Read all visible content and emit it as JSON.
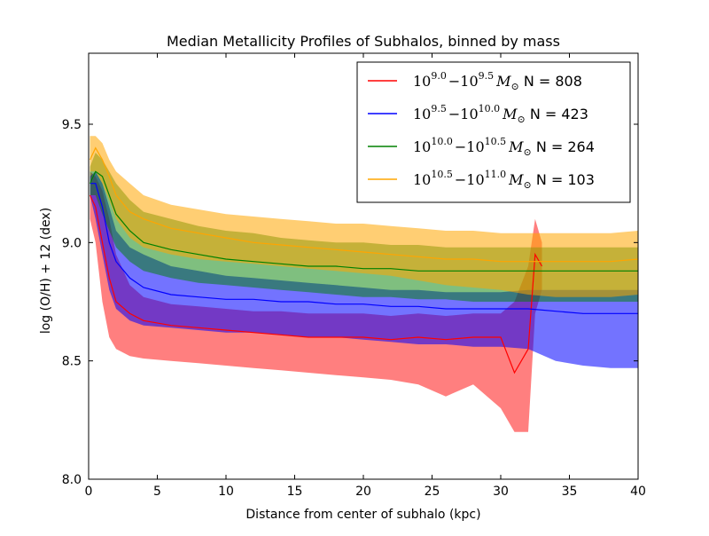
{
  "chart_data": {
    "type": "line",
    "title": "Median Metallicity Profiles of Subhalos, binned by mass",
    "xlabel": "Distance from center of subhalo (kpc)",
    "ylabel": "log (O/H) + 12 (dex)",
    "xlim": [
      0,
      40
    ],
    "ylim": [
      8.0,
      9.8
    ],
    "xticks": [
      0,
      5,
      10,
      15,
      20,
      25,
      30,
      35,
      40
    ],
    "yticks": [
      8.0,
      8.5,
      9.0,
      9.5
    ],
    "xtick_labels": [
      "0",
      "5",
      "10",
      "15",
      "20",
      "25",
      "30",
      "35",
      "40"
    ],
    "ytick_labels": [
      "8.0",
      "8.5",
      "9.0",
      "9.5"
    ],
    "grid": false,
    "legend_position": "top-right",
    "series": [
      {
        "legend": {
          "b1": "10",
          "e1": "9.0",
          "b2": "10",
          "e2": "9.5",
          "n": "N = 808"
        },
        "color": "#ff0000",
        "band_opacity": 0.5,
        "median": [
          [
            0.1,
            9.2
          ],
          [
            0.5,
            9.15
          ],
          [
            1,
            9.0
          ],
          [
            1.5,
            8.85
          ],
          [
            2,
            8.75
          ],
          [
            3,
            8.7
          ],
          [
            4,
            8.67
          ],
          [
            6,
            8.65
          ],
          [
            8,
            8.64
          ],
          [
            10,
            8.63
          ],
          [
            12,
            8.62
          ],
          [
            14,
            8.61
          ],
          [
            16,
            8.6
          ],
          [
            18,
            8.6
          ],
          [
            20,
            8.6
          ],
          [
            22,
            8.59
          ],
          [
            24,
            8.6
          ],
          [
            26,
            8.59
          ],
          [
            28,
            8.6
          ],
          [
            30,
            8.6
          ],
          [
            31,
            8.45
          ],
          [
            32,
            8.55
          ],
          [
            32.5,
            8.95
          ],
          [
            33,
            8.9
          ]
        ],
        "upper": [
          [
            0.1,
            9.3
          ],
          [
            0.5,
            9.28
          ],
          [
            1,
            9.22
          ],
          [
            1.5,
            9.1
          ],
          [
            2,
            8.95
          ],
          [
            3,
            8.82
          ],
          [
            4,
            8.77
          ],
          [
            6,
            8.74
          ],
          [
            8,
            8.73
          ],
          [
            10,
            8.72
          ],
          [
            12,
            8.71
          ],
          [
            14,
            8.71
          ],
          [
            16,
            8.7
          ],
          [
            18,
            8.7
          ],
          [
            20,
            8.7
          ],
          [
            22,
            8.69
          ],
          [
            24,
            8.7
          ],
          [
            26,
            8.69
          ],
          [
            28,
            8.7
          ],
          [
            30,
            8.7
          ],
          [
            31,
            8.75
          ],
          [
            32,
            8.9
          ],
          [
            32.5,
            9.1
          ],
          [
            33,
            9.0
          ]
        ],
        "lower": [
          [
            0.1,
            9.1
          ],
          [
            0.5,
            9.0
          ],
          [
            1,
            8.75
          ],
          [
            1.5,
            8.6
          ],
          [
            2,
            8.55
          ],
          [
            3,
            8.52
          ],
          [
            4,
            8.51
          ],
          [
            6,
            8.5
          ],
          [
            8,
            8.49
          ],
          [
            10,
            8.48
          ],
          [
            12,
            8.47
          ],
          [
            14,
            8.46
          ],
          [
            16,
            8.45
          ],
          [
            18,
            8.44
          ],
          [
            20,
            8.43
          ],
          [
            22,
            8.42
          ],
          [
            24,
            8.4
          ],
          [
            26,
            8.35
          ],
          [
            28,
            8.4
          ],
          [
            30,
            8.3
          ],
          [
            31,
            8.2
          ],
          [
            32,
            8.2
          ],
          [
            32.5,
            8.7
          ],
          [
            33,
            8.8
          ]
        ]
      },
      {
        "legend": {
          "b1": "10",
          "e1": "9.5",
          "b2": "10",
          "e2": "10.0",
          "n": "N = 423"
        },
        "color": "#0000ff",
        "band_opacity": 0.55,
        "median": [
          [
            0.1,
            9.25
          ],
          [
            0.5,
            9.25
          ],
          [
            1,
            9.15
          ],
          [
            1.5,
            9.0
          ],
          [
            2,
            8.92
          ],
          [
            3,
            8.85
          ],
          [
            4,
            8.81
          ],
          [
            6,
            8.78
          ],
          [
            8,
            8.77
          ],
          [
            10,
            8.76
          ],
          [
            12,
            8.76
          ],
          [
            14,
            8.75
          ],
          [
            16,
            8.75
          ],
          [
            18,
            8.74
          ],
          [
            20,
            8.74
          ],
          [
            22,
            8.73
          ],
          [
            24,
            8.73
          ],
          [
            26,
            8.72
          ],
          [
            28,
            8.72
          ],
          [
            30,
            8.72
          ],
          [
            32,
            8.72
          ],
          [
            34,
            8.71
          ],
          [
            36,
            8.7
          ],
          [
            38,
            8.7
          ],
          [
            40,
            8.7
          ]
        ],
        "upper": [
          [
            0.1,
            9.28
          ],
          [
            0.5,
            9.3
          ],
          [
            1,
            9.25
          ],
          [
            1.5,
            9.15
          ],
          [
            2,
            9.05
          ],
          [
            3,
            8.98
          ],
          [
            4,
            8.95
          ],
          [
            6,
            8.9
          ],
          [
            8,
            8.88
          ],
          [
            10,
            8.86
          ],
          [
            12,
            8.85
          ],
          [
            14,
            8.84
          ],
          [
            16,
            8.83
          ],
          [
            18,
            8.82
          ],
          [
            20,
            8.81
          ],
          [
            22,
            8.8
          ],
          [
            24,
            8.8
          ],
          [
            26,
            8.79
          ],
          [
            28,
            8.79
          ],
          [
            30,
            8.79
          ],
          [
            32,
            8.8
          ],
          [
            34,
            8.8
          ],
          [
            36,
            8.8
          ],
          [
            38,
            8.8
          ],
          [
            40,
            8.8
          ]
        ],
        "lower": [
          [
            0.1,
            9.2
          ],
          [
            0.5,
            9.1
          ],
          [
            1,
            8.95
          ],
          [
            1.5,
            8.8
          ],
          [
            2,
            8.72
          ],
          [
            3,
            8.67
          ],
          [
            4,
            8.65
          ],
          [
            6,
            8.64
          ],
          [
            8,
            8.63
          ],
          [
            10,
            8.62
          ],
          [
            12,
            8.62
          ],
          [
            14,
            8.61
          ],
          [
            16,
            8.6
          ],
          [
            18,
            8.6
          ],
          [
            20,
            8.59
          ],
          [
            22,
            8.58
          ],
          [
            24,
            8.57
          ],
          [
            26,
            8.57
          ],
          [
            28,
            8.56
          ],
          [
            30,
            8.56
          ],
          [
            32,
            8.55
          ],
          [
            34,
            8.5
          ],
          [
            36,
            8.48
          ],
          [
            38,
            8.47
          ],
          [
            40,
            8.47
          ]
        ]
      },
      {
        "legend": {
          "b1": "10",
          "e1": "10.0",
          "b2": "10",
          "e2": "10.5",
          "n": "N = 264"
        },
        "color": "#008000",
        "band_opacity": 0.5,
        "median": [
          [
            0.1,
            9.25
          ],
          [
            0.5,
            9.3
          ],
          [
            1,
            9.28
          ],
          [
            1.5,
            9.2
          ],
          [
            2,
            9.12
          ],
          [
            3,
            9.05
          ],
          [
            4,
            9.0
          ],
          [
            6,
            8.97
          ],
          [
            8,
            8.95
          ],
          [
            10,
            8.93
          ],
          [
            12,
            8.92
          ],
          [
            14,
            8.91
          ],
          [
            16,
            8.9
          ],
          [
            18,
            8.9
          ],
          [
            20,
            8.89
          ],
          [
            22,
            8.89
          ],
          [
            24,
            8.88
          ],
          [
            26,
            8.88
          ],
          [
            28,
            8.88
          ],
          [
            30,
            8.88
          ],
          [
            32,
            8.88
          ],
          [
            34,
            8.88
          ],
          [
            36,
            8.88
          ],
          [
            38,
            8.88
          ],
          [
            40,
            8.88
          ]
        ],
        "upper": [
          [
            0.1,
            9.32
          ],
          [
            0.5,
            9.38
          ],
          [
            1,
            9.35
          ],
          [
            1.5,
            9.3
          ],
          [
            2,
            9.25
          ],
          [
            3,
            9.18
          ],
          [
            4,
            9.13
          ],
          [
            6,
            9.1
          ],
          [
            8,
            9.07
          ],
          [
            10,
            9.05
          ],
          [
            12,
            9.04
          ],
          [
            14,
            9.02
          ],
          [
            16,
            9.01
          ],
          [
            18,
            9.0
          ],
          [
            20,
            9.0
          ],
          [
            22,
            8.99
          ],
          [
            24,
            8.99
          ],
          [
            26,
            8.98
          ],
          [
            28,
            8.98
          ],
          [
            30,
            8.98
          ],
          [
            32,
            8.98
          ],
          [
            34,
            8.98
          ],
          [
            36,
            8.98
          ],
          [
            38,
            8.98
          ],
          [
            40,
            8.98
          ]
        ],
        "lower": [
          [
            0.1,
            9.2
          ],
          [
            0.5,
            9.2
          ],
          [
            1,
            9.12
          ],
          [
            1.5,
            9.05
          ],
          [
            2,
            8.98
          ],
          [
            3,
            8.92
          ],
          [
            4,
            8.88
          ],
          [
            6,
            8.85
          ],
          [
            8,
            8.83
          ],
          [
            10,
            8.82
          ],
          [
            12,
            8.81
          ],
          [
            14,
            8.8
          ],
          [
            16,
            8.79
          ],
          [
            18,
            8.78
          ],
          [
            20,
            8.77
          ],
          [
            22,
            8.77
          ],
          [
            24,
            8.76
          ],
          [
            26,
            8.76
          ],
          [
            28,
            8.75
          ],
          [
            30,
            8.75
          ],
          [
            32,
            8.75
          ],
          [
            34,
            8.75
          ],
          [
            36,
            8.75
          ],
          [
            38,
            8.75
          ],
          [
            40,
            8.75
          ]
        ]
      },
      {
        "legend": {
          "b1": "10",
          "e1": "10.5",
          "b2": "10",
          "e2": "11.0",
          "n": "N = 103"
        },
        "color": "#ffa500",
        "band_opacity": 0.55,
        "median": [
          [
            0.1,
            9.35
          ],
          [
            0.5,
            9.4
          ],
          [
            1,
            9.35
          ],
          [
            1.5,
            9.28
          ],
          [
            2,
            9.2
          ],
          [
            3,
            9.13
          ],
          [
            4,
            9.1
          ],
          [
            6,
            9.06
          ],
          [
            8,
            9.04
          ],
          [
            10,
            9.02
          ],
          [
            12,
            9.0
          ],
          [
            14,
            8.99
          ],
          [
            16,
            8.98
          ],
          [
            18,
            8.97
          ],
          [
            20,
            8.96
          ],
          [
            22,
            8.95
          ],
          [
            24,
            8.94
          ],
          [
            26,
            8.93
          ],
          [
            28,
            8.93
          ],
          [
            30,
            8.92
          ],
          [
            32,
            8.92
          ],
          [
            34,
            8.92
          ],
          [
            36,
            8.92
          ],
          [
            38,
            8.92
          ],
          [
            40,
            8.93
          ]
        ],
        "upper": [
          [
            0.1,
            9.45
          ],
          [
            0.5,
            9.45
          ],
          [
            1,
            9.42
          ],
          [
            1.5,
            9.35
          ],
          [
            2,
            9.3
          ],
          [
            3,
            9.25
          ],
          [
            4,
            9.2
          ],
          [
            6,
            9.16
          ],
          [
            8,
            9.14
          ],
          [
            10,
            9.12
          ],
          [
            12,
            9.11
          ],
          [
            14,
            9.1
          ],
          [
            16,
            9.09
          ],
          [
            18,
            9.08
          ],
          [
            20,
            9.08
          ],
          [
            22,
            9.07
          ],
          [
            24,
            9.06
          ],
          [
            26,
            9.05
          ],
          [
            28,
            9.05
          ],
          [
            30,
            9.04
          ],
          [
            32,
            9.04
          ],
          [
            34,
            9.04
          ],
          [
            36,
            9.04
          ],
          [
            38,
            9.04
          ],
          [
            40,
            9.05
          ]
        ],
        "lower": [
          [
            0.1,
            9.3
          ],
          [
            0.5,
            9.3
          ],
          [
            1,
            9.25
          ],
          [
            1.5,
            9.18
          ],
          [
            2,
            9.1
          ],
          [
            3,
            9.02
          ],
          [
            4,
            8.98
          ],
          [
            6,
            8.95
          ],
          [
            8,
            8.93
          ],
          [
            10,
            8.92
          ],
          [
            12,
            8.91
          ],
          [
            14,
            8.9
          ],
          [
            16,
            8.89
          ],
          [
            18,
            8.88
          ],
          [
            20,
            8.87
          ],
          [
            22,
            8.86
          ],
          [
            24,
            8.84
          ],
          [
            26,
            8.82
          ],
          [
            28,
            8.81
          ],
          [
            30,
            8.8
          ],
          [
            32,
            8.78
          ],
          [
            34,
            8.77
          ],
          [
            36,
            8.77
          ],
          [
            38,
            8.77
          ],
          [
            40,
            8.78
          ]
        ]
      }
    ]
  }
}
